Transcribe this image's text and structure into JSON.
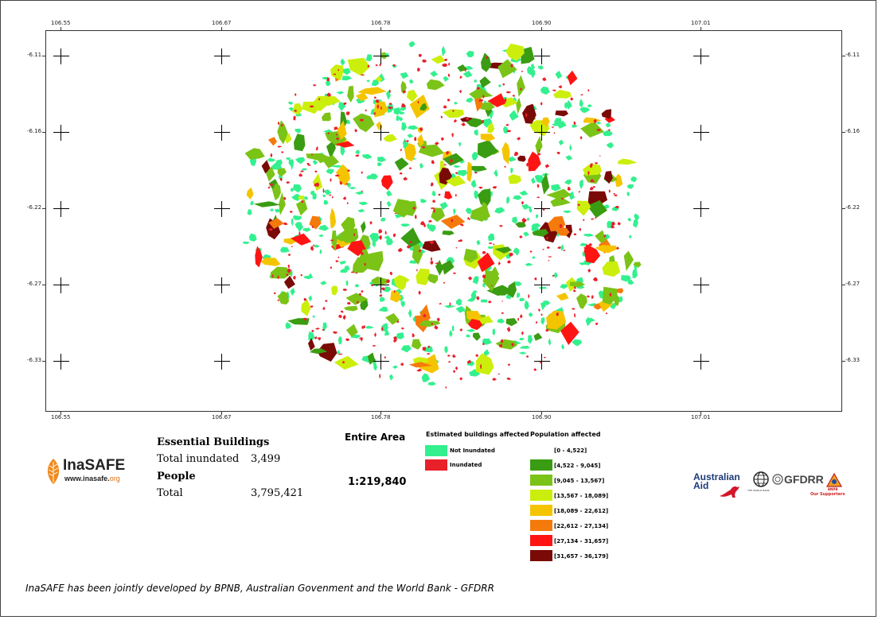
{
  "map": {
    "x_ticks": [
      "106.55",
      "106.67",
      "106.78",
      "106.90",
      "107.01"
    ],
    "y_ticks": [
      "-6.11",
      "-6.16",
      "-6.22",
      "-6.27",
      "-6.33"
    ]
  },
  "summary": {
    "buildings_heading": "Essential Buildings",
    "total_inundated_label": "Total inundated",
    "total_inundated_value": "3,499",
    "people_heading": "People",
    "total_label": "Total",
    "total_value": "3,795,421"
  },
  "area": {
    "title": "Entire Area",
    "scale": "1:219,840"
  },
  "legend_buildings": {
    "title": "Estimated buildings affected",
    "items": [
      {
        "label": "Not Inundated",
        "color": "#33f08f"
      },
      {
        "label": "Inundated",
        "color": "#e8202a"
      }
    ]
  },
  "legend_population": {
    "title": "Population affected",
    "items": [
      {
        "label": "[0 - 4,522]",
        "color": "#ffffff"
      },
      {
        "label": "[4,522 - 9,045]",
        "color": "#3a9c12"
      },
      {
        "label": "[9,045 - 13,567]",
        "color": "#7bc317"
      },
      {
        "label": "[13,567 - 18,089]",
        "color": "#ccee0c"
      },
      {
        "label": "[18,089 - 22,612]",
        "color": "#f5c400"
      },
      {
        "label": "[22,612 - 27,134]",
        "color": "#f57a0c"
      },
      {
        "label": "[27,134 - 31,657]",
        "color": "#ff1414"
      },
      {
        "label": "[31,657 - 36,179]",
        "color": "#7a0a06"
      }
    ]
  },
  "logos": {
    "inasafe_name": "InaSAFE",
    "inasafe_url_prefix": "www.inasafe.",
    "inasafe_url_suffix": "org",
    "australian_aid": "Australian Aid",
    "world_bank": "THE WORLD BANK",
    "gfdrr": "GFDRR",
    "bnpb": "BNPB",
    "supporters": "Our Supporters"
  },
  "footer": "InaSAFE has been jointly developed by BPNB, Australian Govenment and the World Bank - GFDRR"
}
